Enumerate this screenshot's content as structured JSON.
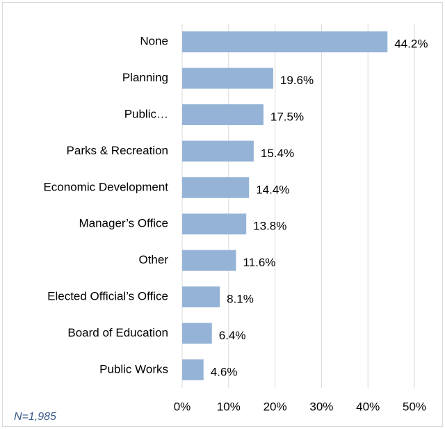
{
  "chart_data": {
    "type": "bar",
    "orientation": "horizontal",
    "categories": [
      "None",
      "Planning",
      "Public…",
      "Parks & Recreation",
      "Economic Development",
      "Manager’s Office",
      "Other",
      "Elected Official’s Office",
      "Board of Education",
      "Public Works"
    ],
    "values": [
      44.2,
      19.6,
      17.5,
      15.4,
      14.4,
      13.8,
      11.6,
      8.1,
      6.4,
      4.6
    ],
    "value_labels": [
      "44.2%",
      "19.6%",
      "17.5%",
      "15.4%",
      "14.4%",
      "13.8%",
      "11.6%",
      "8.1%",
      "6.4%",
      "4.6%"
    ],
    "color": "#95b3d7",
    "xlim": [
      0,
      50
    ],
    "xticks": [
      {
        "value": 0,
        "label": "0%"
      },
      {
        "value": 10,
        "label": "10%"
      },
      {
        "value": 20,
        "label": "20%"
      },
      {
        "value": 30,
        "label": "30%"
      },
      {
        "value": 40,
        "label": "40%"
      },
      {
        "value": 50,
        "label": "50%"
      }
    ],
    "grid": true,
    "annotation": "N=1,985"
  }
}
